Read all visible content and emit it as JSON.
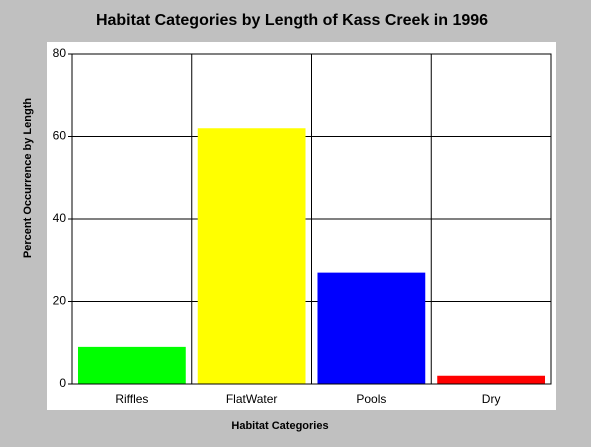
{
  "chart_data": {
    "type": "bar",
    "title": "Habitat Categories by Length of Kass Creek in 1996",
    "x_label": "Habitat Categories",
    "y_label": "Percent Occurrence by Length",
    "categories": [
      "Riffles",
      "FlatWater",
      "Pools",
      "Dry"
    ],
    "values": [
      9,
      62,
      27,
      2
    ],
    "colors": [
      "#00ff00",
      "#ffff00",
      "#0000ff",
      "#ff0000"
    ],
    "ylim": [
      0,
      80
    ],
    "yticks": [
      0,
      20,
      40,
      60,
      80
    ],
    "grid": true
  }
}
